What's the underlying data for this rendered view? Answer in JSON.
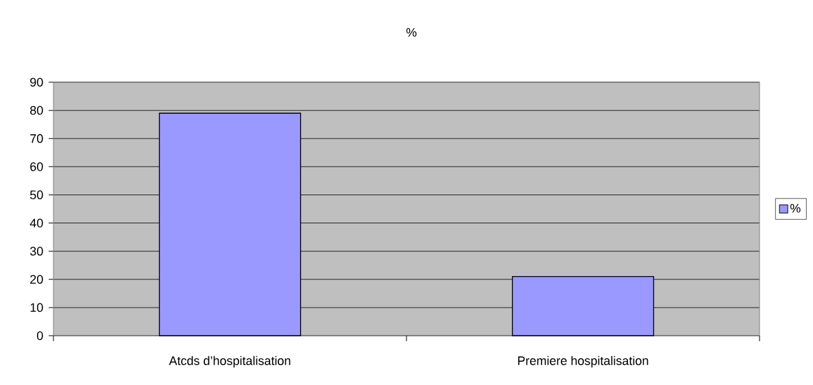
{
  "chart_data": {
    "type": "bar",
    "title": "%",
    "categories": [
      "Atcds d’hospitalisation",
      "Premiere hospitalisation"
    ],
    "series": [
      {
        "name": "%",
        "color": "#9999ff",
        "values": [
          79,
          21
        ]
      }
    ],
    "ylim": [
      0,
      90
    ],
    "yticks": [
      0,
      10,
      20,
      30,
      40,
      50,
      60,
      70,
      80,
      90
    ],
    "grid": "y",
    "legend": "right"
  }
}
